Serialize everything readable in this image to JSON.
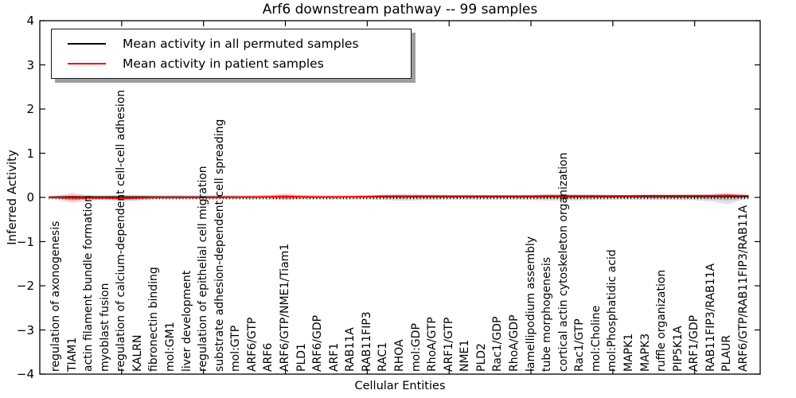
{
  "title": "Arf6 downstream pathway -- 99 samples",
  "legend": {
    "items": [
      {
        "label": "Mean activity in all permuted samples",
        "color": "#000000"
      },
      {
        "label": "Mean activity in patient samples",
        "color": "#ff0000"
      }
    ]
  },
  "axes": {
    "ylabel": "Inferred Activity",
    "xlabel": "Cellular Entities",
    "yticklabels": [
      "4",
      "3",
      "2",
      "1",
      "0",
      "−1",
      "−2",
      "−3",
      "−4"
    ],
    "yticks": [
      4,
      3,
      2,
      1,
      0,
      -1,
      -2,
      -3,
      -4
    ]
  },
  "chart_data": {
    "type": "line",
    "title": "Arf6 downstream pathway -- 99 samples",
    "xlabel": "Cellular Entities",
    "ylabel": "Inferred Activity",
    "ylim": [
      -4,
      4
    ],
    "grid": false,
    "legend_position": "upper left",
    "categories": [
      "regulation of axonogenesis",
      "TIAM1",
      "actin filament bundle formation",
      "myoblast fusion",
      "regulation of calcium-dependent cell-cell adhesion",
      "KALRN",
      "fibronectin binding",
      "mol:GM1",
      "liver development",
      "regulation of epithelial cell migration",
      "substrate adhesion-dependent cell spreading",
      "mol:GTP",
      "ARF6/GTP",
      "ARF6",
      "ARF6/GTP/NME1/Tiam1",
      "PLD1",
      "ARF6/GDP",
      "ARF1",
      "RAB11A",
      "RAB11FIP3",
      "RAC1",
      "RHOA",
      "mol:GDP",
      "RhoA/GTP",
      "ARF1/GTP",
      "NME1",
      "PLD2",
      "Rac1/GDP",
      "RhoA/GDP",
      "lamellipodium assembly",
      "tube morphogenesis",
      "cortical actin cytoskeleton organization",
      "Rac1/GTP",
      "mol:Choline",
      "mol:Phosphatidic acid",
      "MAPK1",
      "MAPK3",
      "ruffle organization",
      "PIP5K1A",
      "ARF1/GDP",
      "RAB11FIP3/RAB11A",
      "PLAUR",
      "ARF6/GTP/RAB11FIP3/RAB11A"
    ],
    "series": [
      {
        "name": "Mean activity in all permuted samples",
        "color": "#000000",
        "values": [
          0,
          0,
          0,
          0,
          0,
          0,
          0,
          0,
          0,
          0,
          0,
          0,
          0,
          0,
          0,
          0,
          0,
          0,
          0,
          0,
          0,
          0,
          0,
          0,
          0,
          0,
          0,
          0,
          0,
          0,
          0,
          0,
          0,
          0,
          0,
          0,
          0,
          0,
          0,
          0,
          0,
          0,
          0
        ]
      },
      {
        "name": "Mean activity in patient samples",
        "color": "#ff0000",
        "values": [
          0,
          -0.01,
          -0.01,
          -0.01,
          -0.02,
          -0.01,
          0,
          0,
          0,
          0,
          0,
          0.005,
          0.01,
          0.015,
          0.02,
          0.015,
          0.01,
          0.01,
          0.015,
          0.02,
          0.03,
          0.03,
          0.03,
          0.03,
          0.03,
          0.03,
          0.03,
          0.03,
          0.03,
          0.03,
          0.035,
          0.035,
          0.035,
          0.035,
          0.035,
          0.035,
          0.04,
          0.04,
          0.04,
          0.04,
          0.04,
          0.045,
          0.04
        ]
      }
    ],
    "bands": [
      {
        "name": "permuted samples spread",
        "color": "#999999",
        "upper": [
          0.04,
          0.05,
          0.05,
          0.05,
          0.06,
          0.06,
          0.05,
          0.05,
          0.05,
          0.05,
          0.05,
          0.05,
          0.05,
          0.05,
          0.06,
          0.05,
          0.05,
          0.05,
          0.05,
          0.05,
          0.06,
          0.07,
          0.065,
          0.06,
          0.05,
          0.05,
          0.05,
          0.05,
          0.05,
          0.055,
          0.07,
          0.07,
          0.065,
          0.06,
          0.05,
          0.05,
          0.055,
          0.06,
          0.06,
          0.065,
          0.07,
          0.09,
          0.03
        ],
        "lower": [
          0.04,
          0.05,
          0.05,
          0.05,
          0.06,
          0.06,
          0.05,
          0.05,
          0.05,
          0.05,
          0.05,
          0.05,
          0.05,
          0.05,
          0.06,
          0.05,
          0.05,
          0.05,
          0.05,
          0.05,
          0.06,
          0.08,
          0.07,
          0.06,
          0.05,
          0.05,
          0.05,
          0.05,
          0.05,
          0.06,
          0.08,
          0.08,
          0.07,
          0.06,
          0.05,
          0.05,
          0.06,
          0.06,
          0.06,
          0.07,
          0.09,
          0.16,
          0.05
        ]
      },
      {
        "name": "patient samples spread",
        "color": "#ff0000",
        "half_width": [
          0.03,
          0.12,
          0.05,
          0.04,
          0.06,
          0.055,
          0.03,
          0.025,
          0.02,
          0.02,
          0.02,
          0.02,
          0.025,
          0.04,
          0.07,
          0.04,
          0.03,
          0.025,
          0.025,
          0.025,
          0.03,
          0.035,
          0.03,
          0.035,
          0.03,
          0.025,
          0.025,
          0.025,
          0.03,
          0.03,
          0.035,
          0.035,
          0.03,
          0.03,
          0.025,
          0.025,
          0.03,
          0.03,
          0.03,
          0.03,
          0.035,
          0.05,
          0.035
        ]
      }
    ]
  }
}
